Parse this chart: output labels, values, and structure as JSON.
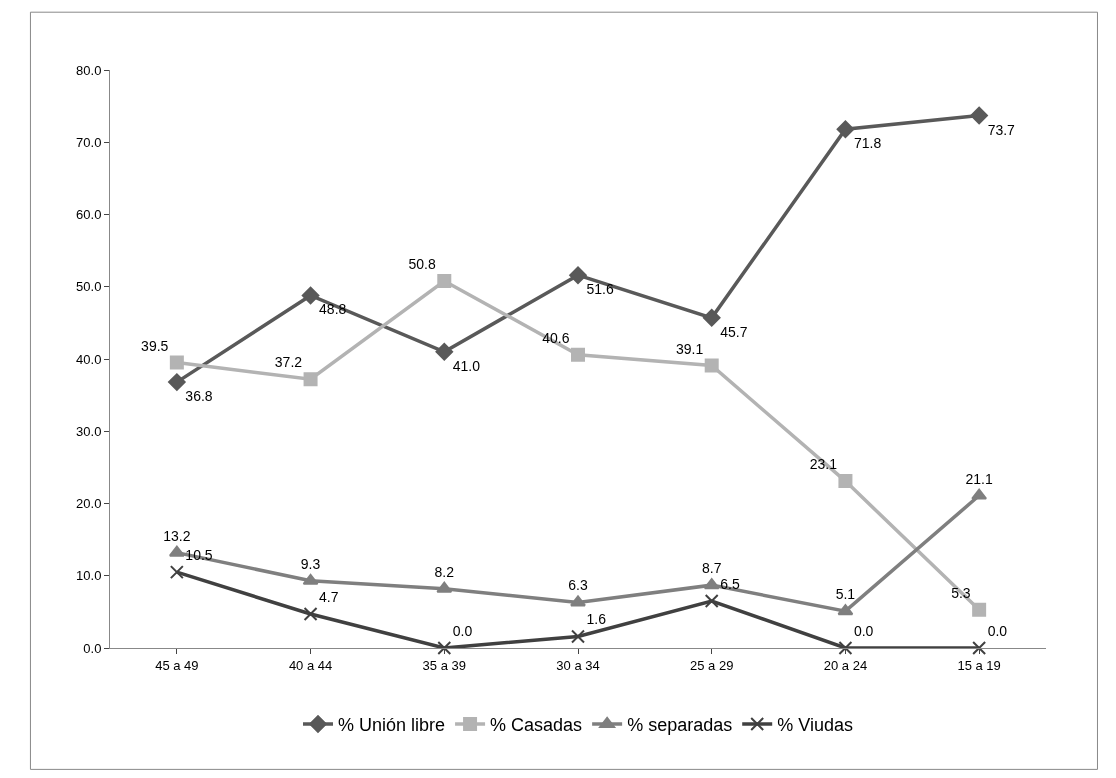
{
  "chart_data": {
    "type": "line",
    "categories": [
      "45 a 49",
      "40 a 44",
      "35 a 39",
      "30 a 34",
      "25 a 29",
      "20 a 24",
      "15 a 19"
    ],
    "series": [
      {
        "name": "% Unión libre",
        "color": "#595959",
        "marker": "diamond",
        "values": [
          36.8,
          48.8,
          41.0,
          51.6,
          45.7,
          71.8,
          73.7
        ],
        "value_labels": [
          "36.8",
          "48.8",
          "41.0",
          "51.6",
          "45.7",
          "71.8",
          "73.7"
        ]
      },
      {
        "name": "% Casadas",
        "color": "#b3b3b3",
        "marker": "square",
        "values": [
          39.5,
          37.2,
          50.8,
          40.6,
          39.1,
          23.1,
          5.3
        ],
        "value_labels": [
          "39.5",
          "37.2",
          "50.8",
          "40.6",
          "39.1",
          "23.1",
          "5.3"
        ]
      },
      {
        "name": "% separadas",
        "color": "#7f7f7f",
        "marker": "triangle",
        "values": [
          13.2,
          9.3,
          8.2,
          6.3,
          8.7,
          5.1,
          21.1
        ],
        "value_labels": [
          "13.2",
          "9.3",
          "8.2",
          "6.3",
          "8.7",
          "5.1",
          "21.1"
        ]
      },
      {
        "name": "% Viudas",
        "color": "#404040",
        "marker": "cross",
        "values": [
          10.5,
          4.7,
          0.0,
          1.6,
          6.5,
          0.0,
          0.0
        ],
        "value_labels": [
          "10.5",
          "4.7",
          "0.0",
          "1.6",
          "6.5",
          "0.0",
          "0.0"
        ]
      }
    ],
    "ylim": [
      0,
      80
    ],
    "yticks": [
      {
        "value": 0,
        "label": "0.0"
      },
      {
        "value": 10,
        "label": "10.0"
      },
      {
        "value": 20,
        "label": "20.0"
      },
      {
        "value": 30,
        "label": "30.0"
      },
      {
        "value": 40,
        "label": "40.0"
      },
      {
        "value": 50,
        "label": "50.0"
      },
      {
        "value": 60,
        "label": "60.0"
      },
      {
        "value": 70,
        "label": "70.0"
      },
      {
        "value": 80,
        "label": "80.0"
      }
    ],
    "legend": "bottom",
    "line_style": "solid"
  }
}
